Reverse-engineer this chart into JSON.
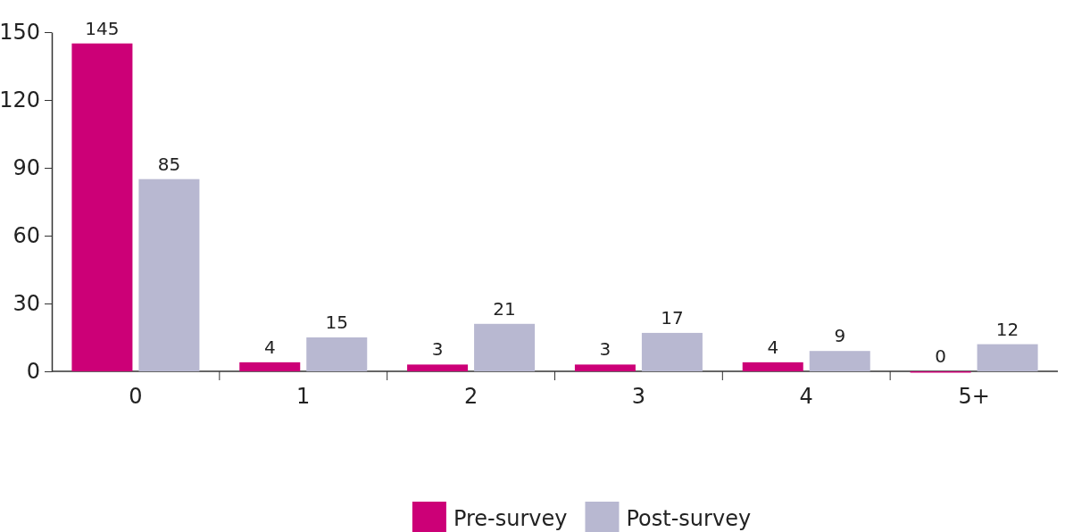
{
  "chart_data": {
    "type": "bar",
    "categories": [
      "0",
      "1",
      "2",
      "3",
      "4",
      "5+"
    ],
    "series": [
      {
        "name": "Pre-survey",
        "color": "#cc0077",
        "values": [
          145,
          4,
          3,
          3,
          4,
          0
        ]
      },
      {
        "name": "Post-survey",
        "color": "#b8b8d1",
        "values": [
          85,
          15,
          21,
          17,
          9,
          12
        ]
      }
    ],
    "ylim": [
      0,
      150
    ],
    "yticks": [
      0,
      30,
      60,
      90,
      120,
      150
    ],
    "data_labels": true,
    "legend": "bottom",
    "grid": false
  }
}
